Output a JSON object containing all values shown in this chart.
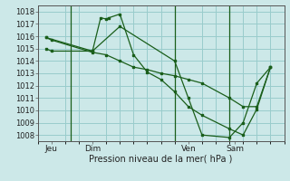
{
  "title": "Pression niveau de la mer( hPa )",
  "bg_color": "#cce8e8",
  "grid_color": "#99cccc",
  "line_color": "#1a5e1a",
  "ylim": [
    1007.5,
    1018.5
  ],
  "yticks": [
    1008,
    1009,
    1010,
    1011,
    1012,
    1013,
    1014,
    1015,
    1016,
    1017,
    1018
  ],
  "xlim": [
    0,
    9.0
  ],
  "xtick_labels": [
    "Jeu",
    "Dim",
    "Ven",
    "Sam"
  ],
  "xtick_positions": [
    0.5,
    2.0,
    5.5,
    7.2
  ],
  "vlines": [
    1.2,
    5.0,
    7.0
  ],
  "series": [
    {
      "x": [
        0.3,
        0.5,
        2.0,
        2.3,
        2.5,
        2.6,
        3.0,
        3.5,
        4.0,
        4.5,
        5.0,
        5.5,
        6.0,
        7.0,
        7.5,
        8.0,
        8.5
      ],
      "y": [
        1015.0,
        1014.8,
        1014.8,
        1017.5,
        1017.4,
        1017.5,
        1017.8,
        1014.5,
        1013.1,
        1012.5,
        1011.5,
        1010.3,
        1009.6,
        1008.5,
        1008.0,
        1010.1,
        1013.5
      ]
    },
    {
      "x": [
        0.3,
        0.5,
        2.0,
        2.5,
        3.0,
        3.5,
        4.0,
        4.5,
        5.0,
        5.5,
        6.0,
        7.0,
        7.5,
        8.0,
        8.5
      ],
      "y": [
        1015.9,
        1015.7,
        1014.7,
        1014.5,
        1014.0,
        1013.5,
        1013.3,
        1013.0,
        1012.8,
        1012.5,
        1012.2,
        1011.0,
        1010.3,
        1010.3,
        1013.5
      ]
    },
    {
      "x": [
        0.3,
        2.0,
        3.0,
        5.0,
        5.5,
        6.0,
        7.0,
        7.5,
        8.0,
        8.5
      ],
      "y": [
        1015.9,
        1014.8,
        1016.8,
        1014.0,
        1011.0,
        1008.0,
        1007.8,
        1009.0,
        1012.2,
        1013.5
      ]
    }
  ]
}
